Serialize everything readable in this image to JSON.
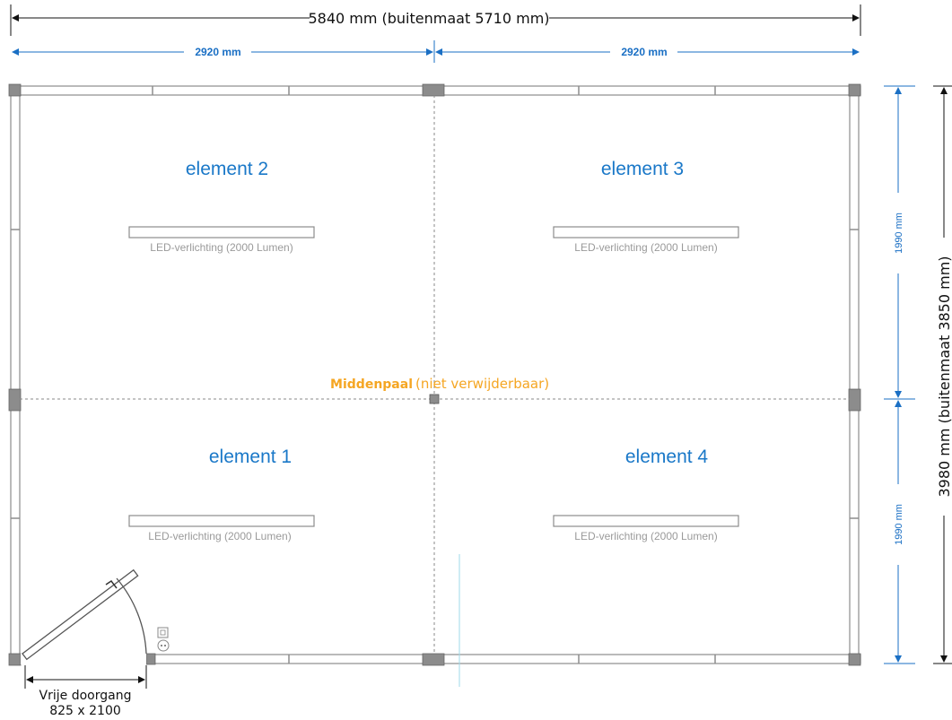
{
  "dimensions": {
    "total_width": "5840 mm (buitenmaat 5710 mm)",
    "half_width_left": "2920 mm",
    "half_width_right": "2920 mm",
    "half_height_top": "1990 mm",
    "half_height_bottom": "1990 mm",
    "total_height": "3980 mm (buitenmaat 3850 mm)"
  },
  "elements": [
    {
      "label": "element 2",
      "led": "LED-verlichting (2000 Lumen)"
    },
    {
      "label": "element 3",
      "led": "LED-verlichting (2000 Lumen)"
    },
    {
      "label": "element 1",
      "led": "LED-verlichting (2000 Lumen)"
    },
    {
      "label": "element 4",
      "led": "LED-verlichting (2000 Lumen)"
    }
  ],
  "middenpaal": {
    "bold": "Middenpaal",
    "note": "(niet verwijderbaar)"
  },
  "door": {
    "line1": "Vrije doorgang",
    "line2": "825 x 2100"
  },
  "colors": {
    "dimension": "#1a6fc4",
    "element_label": "#1a78c8",
    "middenpaal": "#f5a623",
    "wall": "#8c8c8c"
  }
}
